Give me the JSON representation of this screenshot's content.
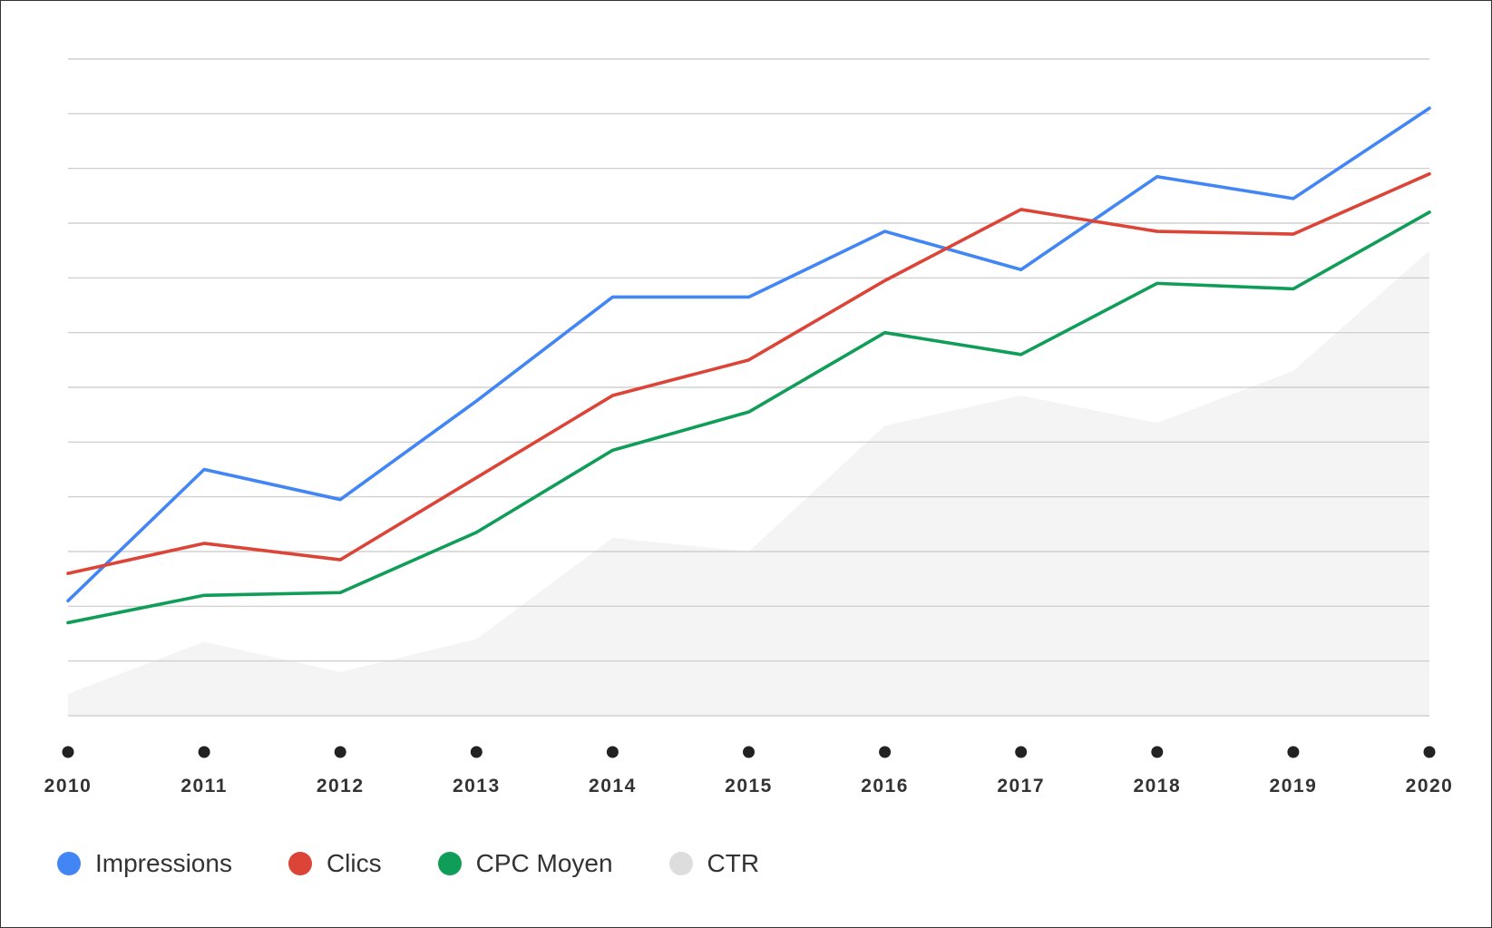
{
  "chart_data": {
    "type": "line",
    "categories": [
      "2010",
      "2011",
      "2012",
      "2013",
      "2014",
      "2015",
      "2016",
      "2017",
      "2018",
      "2019",
      "2020"
    ],
    "ylim": [
      0,
      12
    ],
    "grid": true,
    "legend_position": "bottom-left",
    "series": [
      {
        "name": "Impressions",
        "kind": "line",
        "color": "#4285f4",
        "values": [
          2.1,
          4.5,
          3.95,
          5.75,
          7.65,
          7.65,
          8.85,
          8.15,
          9.85,
          9.45,
          11.1
        ]
      },
      {
        "name": "Clics",
        "kind": "line",
        "color": "#db4437",
        "values": [
          2.6,
          3.15,
          2.85,
          4.35,
          5.85,
          6.5,
          7.95,
          9.25,
          8.85,
          8.8,
          9.9
        ]
      },
      {
        "name": "CPC Moyen",
        "kind": "line",
        "color": "#0f9d58",
        "values": [
          1.7,
          2.2,
          2.25,
          3.35,
          4.85,
          5.55,
          7.0,
          6.6,
          7.9,
          7.8,
          9.2
        ]
      },
      {
        "name": "CTR",
        "kind": "area",
        "color": "#dddddd",
        "values": [
          0.4,
          1.35,
          0.8,
          1.4,
          3.25,
          3.0,
          5.3,
          5.85,
          5.35,
          6.3,
          8.5
        ]
      }
    ]
  }
}
